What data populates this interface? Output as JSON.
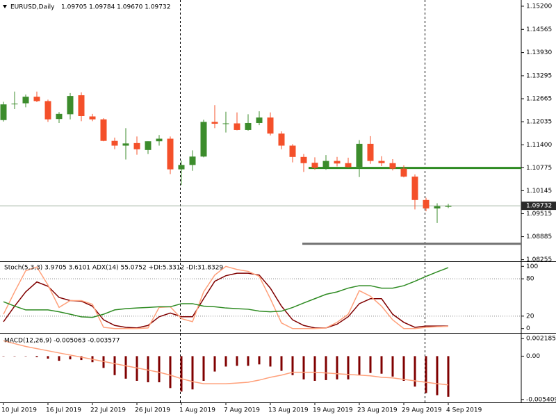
{
  "chart_data": [
    {
      "type": "candlestick",
      "title": "EURUSD,Daily",
      "info": "1.09705 1.09784 1.09670 1.09732",
      "categories": [
        "10 Jul 2019",
        null,
        null,
        null,
        "16 Jul 2019",
        null,
        null,
        null,
        "22 Jul 2019",
        null,
        null,
        null,
        "26 Jul 2019",
        null,
        null,
        null,
        "1 Aug 2019",
        null,
        null,
        null,
        "7 Aug 2019",
        null,
        null,
        null,
        "13 Aug 2019",
        null,
        null,
        null,
        "19 Aug 2019",
        null,
        null,
        null,
        "23 Aug 2019",
        null,
        null,
        null,
        "29 Aug 2019",
        null,
        null,
        null,
        "4 Sep 2019"
      ],
      "open": [
        1.1208,
        1.1252,
        1.1254,
        1.1272,
        1.126,
        1.1211,
        1.1224,
        1.1276,
        1.1218,
        1.121,
        1.1151,
        1.1138,
        1.1145,
        1.1126,
        1.115,
        1.1157,
        1.1073,
        1.1085,
        1.1108,
        1.1203,
        1.1199,
        1.1199,
        1.1181,
        1.12,
        1.1215,
        1.1171,
        1.1138,
        1.1107,
        1.1091,
        1.1078,
        1.1096,
        1.109,
        1.108,
        1.1143,
        1.1096,
        1.109,
        1.1075,
        1.1053,
        1.0989,
        1.0966,
        1.09705
      ],
      "high": [
        1.1258,
        1.1286,
        1.1278,
        1.1286,
        1.1264,
        1.123,
        1.1282,
        1.1284,
        1.1225,
        1.1213,
        1.116,
        1.1186,
        1.1163,
        1.115,
        1.1167,
        1.1163,
        1.1097,
        1.1125,
        1.1209,
        1.1249,
        1.1231,
        1.1229,
        1.1224,
        1.1232,
        1.1229,
        1.1177,
        1.1142,
        1.1115,
        1.1106,
        1.1112,
        1.1107,
        1.1105,
        1.1153,
        1.1164,
        1.1109,
        1.1101,
        1.1084,
        1.1059,
        1.0995,
        1.098,
        1.09784
      ],
      "low": [
        1.1204,
        1.1238,
        1.1243,
        1.1257,
        1.1203,
        1.12,
        1.121,
        1.1205,
        1.1205,
        1.115,
        1.1128,
        1.11,
        1.1113,
        1.1115,
        1.1138,
        1.106,
        1.103,
        1.1069,
        1.1106,
        1.1186,
        1.1174,
        1.118,
        1.1179,
        1.1194,
        1.1166,
        1.1128,
        1.1092,
        1.1066,
        1.1072,
        1.1072,
        1.1081,
        1.1078,
        1.1052,
        1.1088,
        1.1082,
        1.107,
        1.1051,
        1.0963,
        1.0958,
        1.0926,
        1.0967
      ],
      "close": [
        1.1251,
        1.1253,
        1.1272,
        1.126,
        1.121,
        1.1225,
        1.1274,
        1.1219,
        1.121,
        1.1151,
        1.1138,
        1.1144,
        1.1128,
        1.115,
        1.1157,
        1.1073,
        1.1085,
        1.1108,
        1.1203,
        1.1198,
        1.1199,
        1.1181,
        1.12,
        1.1215,
        1.1171,
        1.1138,
        1.1107,
        1.109,
        1.1077,
        1.1096,
        1.1089,
        1.1079,
        1.1143,
        1.1096,
        1.109,
        1.1075,
        1.1053,
        1.0989,
        1.0966,
        1.0972,
        1.09732
      ],
      "up_color": "#3c8c2c",
      "down_color": "#f4502a",
      "ylim": [
        1.0821,
        1.1537
      ],
      "yticks": [
        {
          "value": 1.152,
          "label": "1.15200"
        },
        {
          "value": 1.14565,
          "label": "1.14565"
        },
        {
          "value": 1.1393,
          "label": "1.13930"
        },
        {
          "value": 1.13295,
          "label": "1.13295"
        },
        {
          "value": 1.12665,
          "label": "1.12665"
        },
        {
          "value": 1.12035,
          "label": "1.12035"
        },
        {
          "value": 1.114,
          "label": "1.11400"
        },
        {
          "value": 1.10775,
          "label": "1.10775"
        },
        {
          "value": 1.10145,
          "label": "1.10145"
        },
        {
          "value": 1.09515,
          "label": "1.09515"
        },
        {
          "value": 1.08885,
          "label": "1.08885"
        },
        {
          "value": 1.08255,
          "label": "1.08255"
        }
      ],
      "hlines": [
        {
          "value": 1.1077,
          "color": "#2e8b22"
        },
        {
          "value": 1.0869,
          "color": "#707070"
        }
      ],
      "vlines": [
        16,
        38
      ]
    },
    {
      "type": "line",
      "title": "Stoch(5,3,3) 3.9705 3.6101  ADX(14) 55.0752 +DI:5.3312 -DI:31.8329",
      "ylim": [
        -7,
        107
      ],
      "yticks": [
        0,
        20,
        80,
        100
      ],
      "levels": [
        20,
        80
      ],
      "y2lim": [
        6.8,
        59.2
      ],
      "series": [
        {
          "color": "#800000",
          "values": [
            11,
            36,
            59,
            75,
            68,
            50,
            45,
            44,
            36,
            14,
            5,
            2,
            1,
            5,
            19,
            25,
            19,
            19,
            48,
            76,
            85,
            89,
            89,
            86,
            65,
            36,
            14,
            5,
            1,
            1,
            7,
            19,
            40,
            48,
            48,
            23,
            10,
            2,
            4,
            4,
            3.9705
          ]
        },
        {
          "color": "#ffa07a",
          "values": [
            23,
            59,
            93,
            99,
            70,
            34,
            45,
            45,
            39,
            2,
            0,
            0,
            0,
            1,
            34,
            35,
            16,
            11,
            59,
            86,
            100,
            95,
            92,
            84,
            48,
            9,
            0,
            0,
            0,
            1,
            10,
            23,
            61,
            52,
            36,
            14,
            0,
            0,
            2,
            3,
            3.6101
          ]
        },
        {
          "color": "#2e8b22",
          "axis": "y2",
          "values": [
            29.8,
            26.6,
            23.8,
            23.8,
            23.8,
            22.4,
            20.6,
            18.7,
            18.3,
            20.6,
            23.8,
            24.7,
            25.2,
            25.6,
            26.1,
            26.1,
            28.4,
            28.4,
            26.6,
            26.1,
            25.2,
            24.7,
            24.3,
            22.9,
            22.4,
            22.9,
            25.6,
            28.9,
            32.1,
            35.3,
            37.1,
            39.9,
            41.7,
            41.7,
            39.9,
            39.9,
            41.7,
            45.0,
            48.6,
            51.9,
            55.0752
          ]
        }
      ]
    },
    {
      "type": "combo",
      "title": "MACD(12,26,9) -0.005063 -0.003577",
      "ylim": [
        -0.00577,
        0.00281
      ],
      "yticks": [
        0.002185,
        {
          "value": 0,
          "label": "0.00"
        },
        -0.005409
      ],
      "series": [
        {
          "type": "bar",
          "color": "#800000",
          "values": [
            -4e-05,
            -4e-05,
            -4e-05,
            -0.00013,
            -0.00031,
            -0.00058,
            -0.0004,
            -0.00049,
            -0.00076,
            -0.00147,
            -0.00237,
            -0.00281,
            -0.00308,
            -0.00326,
            -0.00326,
            -0.00398,
            -0.00442,
            -0.00415,
            -0.00308,
            -0.00192,
            -0.0013,
            -0.00121,
            -0.00121,
            -0.00103,
            -0.0013,
            -0.00183,
            -0.00237,
            -0.0029,
            -0.00308,
            -0.00299,
            -0.0029,
            -0.0029,
            -0.00237,
            -0.0021,
            -0.00219,
            -0.00255,
            -0.00308,
            -0.0038,
            -0.0046,
            -0.00487,
            -0.005063
          ]
        },
        {
          "type": "line",
          "color": "#ffa07a",
          "values": [
            0.00192,
            0.00156,
            0.00121,
            0.00094,
            0.00067,
            0.0004,
            0.00013,
            -0.00013,
            -0.0004,
            -0.00067,
            -0.00094,
            -0.00121,
            -0.00147,
            -0.00174,
            -0.00201,
            -0.00237,
            -0.00281,
            -0.00317,
            -0.00344,
            -0.00344,
            -0.00344,
            -0.00335,
            -0.00326,
            -0.00299,
            -0.00264,
            -0.00237,
            -0.00201,
            -0.00201,
            -0.00201,
            -0.0021,
            -0.00219,
            -0.00228,
            -0.00237,
            -0.00246,
            -0.00264,
            -0.00272,
            -0.0029,
            -0.00308,
            -0.00326,
            -0.00344,
            -0.003577
          ]
        }
      ]
    }
  ]
}
